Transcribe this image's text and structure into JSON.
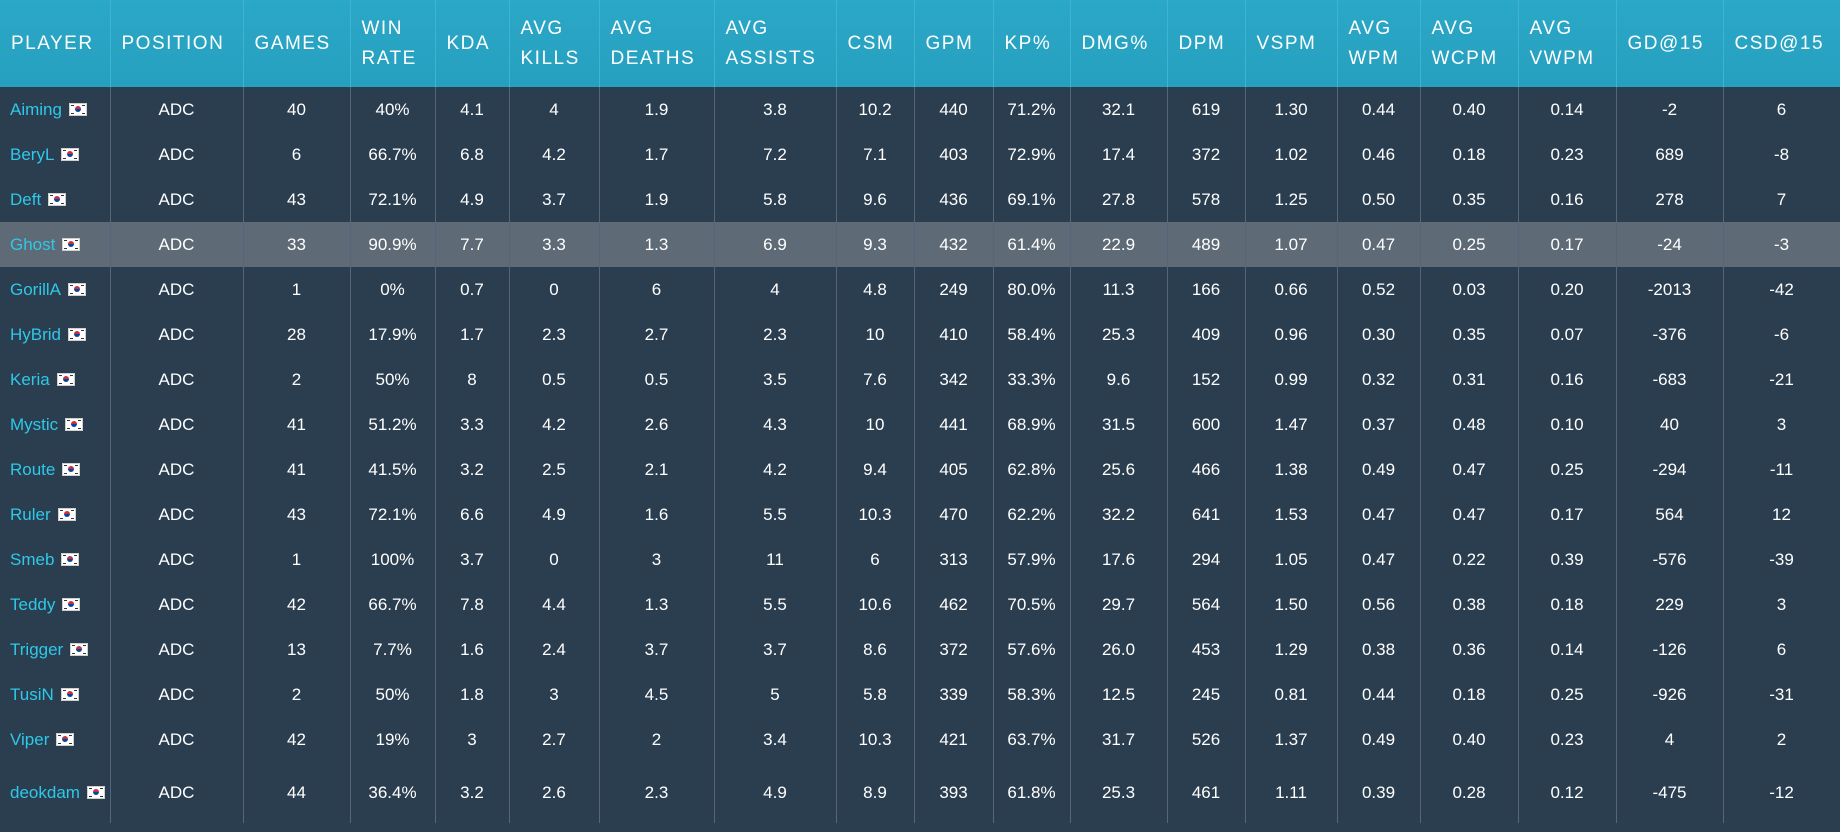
{
  "columns": [
    {
      "key": "player",
      "label": "PLAYER"
    },
    {
      "key": "position",
      "label": "POSITION"
    },
    {
      "key": "games",
      "label": "GAMES"
    },
    {
      "key": "win_rate",
      "label": "WIN RATE"
    },
    {
      "key": "kda",
      "label": "KDA"
    },
    {
      "key": "avg_kills",
      "label": "AVG KILLS"
    },
    {
      "key": "avg_deaths",
      "label": "AVG DEATHS"
    },
    {
      "key": "avg_assists",
      "label": "AVG ASSISTS"
    },
    {
      "key": "csm",
      "label": "CSM"
    },
    {
      "key": "gpm",
      "label": "GPM"
    },
    {
      "key": "kp",
      "label": "KP%"
    },
    {
      "key": "dmg",
      "label": "DMG%"
    },
    {
      "key": "dpm",
      "label": "DPM"
    },
    {
      "key": "vspm",
      "label": "VSPM"
    },
    {
      "key": "avg_wpm",
      "label": "AVG WPM"
    },
    {
      "key": "avg_wcpm",
      "label": "AVG WCPM"
    },
    {
      "key": "avg_vwpm",
      "label": "AVG VWPM"
    },
    {
      "key": "gd15",
      "label": "GD@15"
    },
    {
      "key": "csd15",
      "label": "CSD@15"
    }
  ],
  "flag_icon": "south-korea-flag-icon",
  "colors": {
    "header_bg": "#27a3c2",
    "body_bg": "#2b3e50",
    "highlight_row": "#5e6a75",
    "player_link": "#2ec8e8"
  },
  "rows": [
    {
      "player": "Aiming",
      "position": "ADC",
      "games": "40",
      "win_rate": "40%",
      "kda": "4.1",
      "avg_kills": "4",
      "avg_deaths": "1.9",
      "avg_assists": "3.8",
      "csm": "10.2",
      "gpm": "440",
      "kp": "71.2%",
      "dmg": "32.1",
      "dpm": "619",
      "vspm": "1.30",
      "avg_wpm": "0.44",
      "avg_wcpm": "0.40",
      "avg_vwpm": "0.14",
      "gd15": "-2",
      "csd15": "6"
    },
    {
      "player": "BeryL",
      "position": "ADC",
      "games": "6",
      "win_rate": "66.7%",
      "kda": "6.8",
      "avg_kills": "4.2",
      "avg_deaths": "1.7",
      "avg_assists": "7.2",
      "csm": "7.1",
      "gpm": "403",
      "kp": "72.9%",
      "dmg": "17.4",
      "dpm": "372",
      "vspm": "1.02",
      "avg_wpm": "0.46",
      "avg_wcpm": "0.18",
      "avg_vwpm": "0.23",
      "gd15": "689",
      "csd15": "-8"
    },
    {
      "player": "Deft",
      "position": "ADC",
      "games": "43",
      "win_rate": "72.1%",
      "kda": "4.9",
      "avg_kills": "3.7",
      "avg_deaths": "1.9",
      "avg_assists": "5.8",
      "csm": "9.6",
      "gpm": "436",
      "kp": "69.1%",
      "dmg": "27.8",
      "dpm": "578",
      "vspm": "1.25",
      "avg_wpm": "0.50",
      "avg_wcpm": "0.35",
      "avg_vwpm": "0.16",
      "gd15": "278",
      "csd15": "7"
    },
    {
      "player": "Ghost",
      "position": "ADC",
      "games": "33",
      "win_rate": "90.9%",
      "kda": "7.7",
      "avg_kills": "3.3",
      "avg_deaths": "1.3",
      "avg_assists": "6.9",
      "csm": "9.3",
      "gpm": "432",
      "kp": "61.4%",
      "dmg": "22.9",
      "dpm": "489",
      "vspm": "1.07",
      "avg_wpm": "0.47",
      "avg_wcpm": "0.25",
      "avg_vwpm": "0.17",
      "gd15": "-24",
      "csd15": "-3"
    },
    {
      "player": "GorillA",
      "position": "ADC",
      "games": "1",
      "win_rate": "0%",
      "kda": "0.7",
      "avg_kills": "0",
      "avg_deaths": "6",
      "avg_assists": "4",
      "csm": "4.8",
      "gpm": "249",
      "kp": "80.0%",
      "dmg": "11.3",
      "dpm": "166",
      "vspm": "0.66",
      "avg_wpm": "0.52",
      "avg_wcpm": "0.03",
      "avg_vwpm": "0.20",
      "gd15": "-2013",
      "csd15": "-42"
    },
    {
      "player": "HyBrid",
      "position": "ADC",
      "games": "28",
      "win_rate": "17.9%",
      "kda": "1.7",
      "avg_kills": "2.3",
      "avg_deaths": "2.7",
      "avg_assists": "2.3",
      "csm": "10",
      "gpm": "410",
      "kp": "58.4%",
      "dmg": "25.3",
      "dpm": "409",
      "vspm": "0.96",
      "avg_wpm": "0.30",
      "avg_wcpm": "0.35",
      "avg_vwpm": "0.07",
      "gd15": "-376",
      "csd15": "-6"
    },
    {
      "player": "Keria",
      "position": "ADC",
      "games": "2",
      "win_rate": "50%",
      "kda": "8",
      "avg_kills": "0.5",
      "avg_deaths": "0.5",
      "avg_assists": "3.5",
      "csm": "7.6",
      "gpm": "342",
      "kp": "33.3%",
      "dmg": "9.6",
      "dpm": "152",
      "vspm": "0.99",
      "avg_wpm": "0.32",
      "avg_wcpm": "0.31",
      "avg_vwpm": "0.16",
      "gd15": "-683",
      "csd15": "-21"
    },
    {
      "player": "Mystic",
      "position": "ADC",
      "games": "41",
      "win_rate": "51.2%",
      "kda": "3.3",
      "avg_kills": "4.2",
      "avg_deaths": "2.6",
      "avg_assists": "4.3",
      "csm": "10",
      "gpm": "441",
      "kp": "68.9%",
      "dmg": "31.5",
      "dpm": "600",
      "vspm": "1.47",
      "avg_wpm": "0.37",
      "avg_wcpm": "0.48",
      "avg_vwpm": "0.10",
      "gd15": "40",
      "csd15": "3"
    },
    {
      "player": "Route",
      "position": "ADC",
      "games": "41",
      "win_rate": "41.5%",
      "kda": "3.2",
      "avg_kills": "2.5",
      "avg_deaths": "2.1",
      "avg_assists": "4.2",
      "csm": "9.4",
      "gpm": "405",
      "kp": "62.8%",
      "dmg": "25.6",
      "dpm": "466",
      "vspm": "1.38",
      "avg_wpm": "0.49",
      "avg_wcpm": "0.47",
      "avg_vwpm": "0.25",
      "gd15": "-294",
      "csd15": "-11"
    },
    {
      "player": "Ruler",
      "position": "ADC",
      "games": "43",
      "win_rate": "72.1%",
      "kda": "6.6",
      "avg_kills": "4.9",
      "avg_deaths": "1.6",
      "avg_assists": "5.5",
      "csm": "10.3",
      "gpm": "470",
      "kp": "62.2%",
      "dmg": "32.2",
      "dpm": "641",
      "vspm": "1.53",
      "avg_wpm": "0.47",
      "avg_wcpm": "0.47",
      "avg_vwpm": "0.17",
      "gd15": "564",
      "csd15": "12"
    },
    {
      "player": "Smeb",
      "position": "ADC",
      "games": "1",
      "win_rate": "100%",
      "kda": "3.7",
      "avg_kills": "0",
      "avg_deaths": "3",
      "avg_assists": "11",
      "csm": "6",
      "gpm": "313",
      "kp": "57.9%",
      "dmg": "17.6",
      "dpm": "294",
      "vspm": "1.05",
      "avg_wpm": "0.47",
      "avg_wcpm": "0.22",
      "avg_vwpm": "0.39",
      "gd15": "-576",
      "csd15": "-39"
    },
    {
      "player": "Teddy",
      "position": "ADC",
      "games": "42",
      "win_rate": "66.7%",
      "kda": "7.8",
      "avg_kills": "4.4",
      "avg_deaths": "1.3",
      "avg_assists": "5.5",
      "csm": "10.6",
      "gpm": "462",
      "kp": "70.5%",
      "dmg": "29.7",
      "dpm": "564",
      "vspm": "1.50",
      "avg_wpm": "0.56",
      "avg_wcpm": "0.38",
      "avg_vwpm": "0.18",
      "gd15": "229",
      "csd15": "3"
    },
    {
      "player": "Trigger",
      "position": "ADC",
      "games": "13",
      "win_rate": "7.7%",
      "kda": "1.6",
      "avg_kills": "2.4",
      "avg_deaths": "3.7",
      "avg_assists": "3.7",
      "csm": "8.6",
      "gpm": "372",
      "kp": "57.6%",
      "dmg": "26.0",
      "dpm": "453",
      "vspm": "1.29",
      "avg_wpm": "0.38",
      "avg_wcpm": "0.36",
      "avg_vwpm": "0.14",
      "gd15": "-126",
      "csd15": "6"
    },
    {
      "player": "TusiN",
      "position": "ADC",
      "games": "2",
      "win_rate": "50%",
      "kda": "1.8",
      "avg_kills": "3",
      "avg_deaths": "4.5",
      "avg_assists": "5",
      "csm": "5.8",
      "gpm": "339",
      "kp": "58.3%",
      "dmg": "12.5",
      "dpm": "245",
      "vspm": "0.81",
      "avg_wpm": "0.44",
      "avg_wcpm": "0.18",
      "avg_vwpm": "0.25",
      "gd15": "-926",
      "csd15": "-31"
    },
    {
      "player": "Viper",
      "position": "ADC",
      "games": "42",
      "win_rate": "19%",
      "kda": "3",
      "avg_kills": "2.7",
      "avg_deaths": "2",
      "avg_assists": "3.4",
      "csm": "10.3",
      "gpm": "421",
      "kp": "63.7%",
      "dmg": "31.7",
      "dpm": "526",
      "vspm": "1.37",
      "avg_wpm": "0.49",
      "avg_wcpm": "0.40",
      "avg_vwpm": "0.23",
      "gd15": "4",
      "csd15": "2"
    },
    {
      "player": "deokdam",
      "position": "ADC",
      "games": "44",
      "win_rate": "36.4%",
      "kda": "3.2",
      "avg_kills": "2.6",
      "avg_deaths": "2.3",
      "avg_assists": "4.9",
      "csm": "8.9",
      "gpm": "393",
      "kp": "61.8%",
      "dmg": "25.3",
      "dpm": "461",
      "vspm": "1.11",
      "avg_wpm": "0.39",
      "avg_wcpm": "0.28",
      "avg_vwpm": "0.12",
      "gd15": "-475",
      "csd15": "-12"
    }
  ]
}
